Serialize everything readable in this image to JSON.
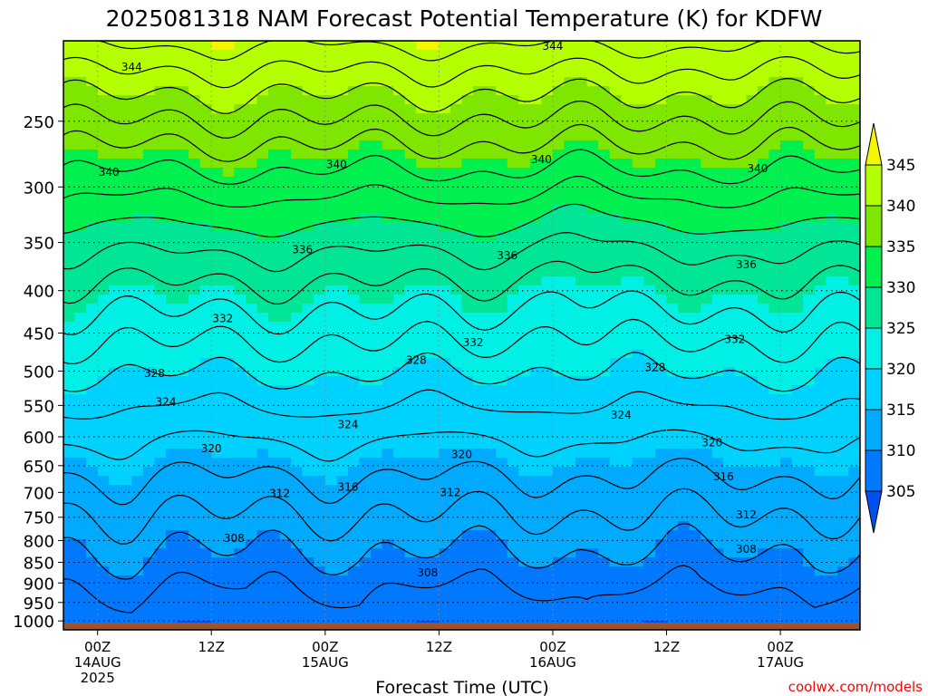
{
  "chart_data": {
    "type": "heatmap",
    "title": "2025081318 NAM Forecast Potential Temperature (K) for KDFW",
    "xlabel": "Forecast Time (UTC)",
    "ylabel": "",
    "x_range_hours": [
      -3,
      67
    ],
    "y_range_hPa": [
      1025,
      200
    ],
    "y_scale": "log",
    "y_ticks": [
      "250",
      "300",
      "350",
      "400",
      "450",
      "500",
      "550",
      "600",
      "650",
      "700",
      "750",
      "800",
      "850",
      "900",
      "950",
      "1000"
    ],
    "x_ticks": [
      {
        "hour": 0,
        "label": "00Z",
        "sub": [
          "14AUG",
          "2025"
        ]
      },
      {
        "hour": 10,
        "label": "12Z",
        "sub": []
      },
      {
        "hour": 20,
        "label": "00Z",
        "sub": [
          "15AUG"
        ]
      },
      {
        "hour": 30,
        "label": "12Z",
        "sub": []
      },
      {
        "hour": 40,
        "label": "00Z",
        "sub": [
          "16AUG"
        ]
      },
      {
        "hour": 50,
        "label": "12Z",
        "sub": []
      },
      {
        "hour": 60,
        "label": "00Z",
        "sub": [
          "17AUG"
        ]
      }
    ],
    "grid": true,
    "colorbar": {
      "levels": [
        "305",
        "310",
        "315",
        "320",
        "325",
        "330",
        "335",
        "340",
        "345"
      ],
      "colors": [
        "#0050f0",
        "#0078ff",
        "#00aaff",
        "#00d2ff",
        "#00f0e6",
        "#00e696",
        "#00f050",
        "#7ee600",
        "#b4ff00",
        "#f5f500"
      ]
    },
    "contour_labels": [
      {
        "value": "344",
        "hour": 3,
        "p": 215
      },
      {
        "value": "344",
        "hour": 40,
        "p": 203
      },
      {
        "value": "340",
        "hour": 1,
        "p": 288
      },
      {
        "value": "340",
        "hour": 21,
        "p": 282
      },
      {
        "value": "340",
        "hour": 39,
        "p": 278
      },
      {
        "value": "340",
        "hour": 58,
        "p": 285
      },
      {
        "value": "336",
        "hour": 18,
        "p": 357
      },
      {
        "value": "336",
        "hour": 36,
        "p": 363
      },
      {
        "value": "336",
        "hour": 57,
        "p": 372
      },
      {
        "value": "332",
        "hour": 11,
        "p": 432
      },
      {
        "value": "332",
        "hour": 33,
        "p": 462
      },
      {
        "value": "332",
        "hour": 56,
        "p": 458
      },
      {
        "value": "328",
        "hour": 5,
        "p": 503
      },
      {
        "value": "328",
        "hour": 28,
        "p": 485
      },
      {
        "value": "328",
        "hour": 49,
        "p": 495
      },
      {
        "value": "324",
        "hour": 6,
        "p": 545
      },
      {
        "value": "324",
        "hour": 22,
        "p": 580
      },
      {
        "value": "324",
        "hour": 46,
        "p": 565
      },
      {
        "value": "320",
        "hour": 10,
        "p": 620
      },
      {
        "value": "320",
        "hour": 32,
        "p": 630
      },
      {
        "value": "320",
        "hour": 54,
        "p": 610
      },
      {
        "value": "316",
        "hour": 22,
        "p": 690
      },
      {
        "value": "316",
        "hour": 55,
        "p": 670
      },
      {
        "value": "312",
        "hour": 16,
        "p": 702
      },
      {
        "value": "312",
        "hour": 31,
        "p": 700
      },
      {
        "value": "312",
        "hour": 57,
        "p": 745
      },
      {
        "value": "308",
        "hour": 12,
        "p": 795
      },
      {
        "value": "308",
        "hour": 29,
        "p": 875
      },
      {
        "value": "308",
        "hour": 57,
        "p": 820
      }
    ],
    "ground_color": "#a0522d"
  },
  "credit": "coolwx.com/models"
}
